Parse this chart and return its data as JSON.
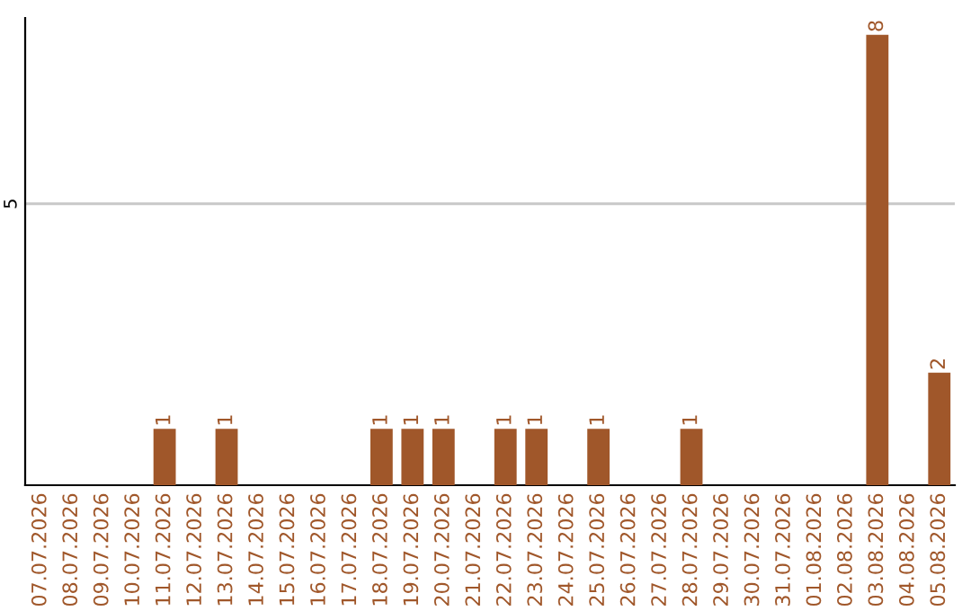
{
  "chart_data": {
    "type": "bar",
    "categories": [
      "07.07.2026",
      "08.07.2026",
      "09.07.2026",
      "10.07.2026",
      "11.07.2026",
      "12.07.2026",
      "13.07.2026",
      "14.07.2026",
      "15.07.2026",
      "16.07.2026",
      "17.07.2026",
      "18.07.2026",
      "19.07.2026",
      "20.07.2026",
      "21.07.2026",
      "22.07.2026",
      "23.07.2026",
      "24.07.2026",
      "25.07.2026",
      "26.07.2026",
      "27.07.2026",
      "28.07.2026",
      "29.07.2026",
      "30.07.2026",
      "31.07.2026",
      "01.08.2026",
      "02.08.2026",
      "03.08.2026",
      "04.08.2026",
      "05.08.2026"
    ],
    "values": [
      0,
      0,
      0,
      0,
      1,
      0,
      1,
      0,
      0,
      0,
      0,
      1,
      1,
      1,
      0,
      1,
      1,
      0,
      1,
      0,
      0,
      1,
      0,
      0,
      0,
      0,
      0,
      8,
      0,
      2
    ],
    "value_labels": [
      null,
      null,
      null,
      null,
      "1",
      null,
      "1",
      null,
      null,
      null,
      null,
      "1",
      "1",
      "1",
      null,
      "1",
      "1",
      null,
      "1",
      null,
      null,
      "1",
      null,
      null,
      null,
      null,
      null,
      "8",
      null,
      "2"
    ],
    "color": "#a0572a",
    "ylim": [
      0,
      8.3
    ],
    "yticks": [
      5
    ],
    "grid": "y"
  }
}
